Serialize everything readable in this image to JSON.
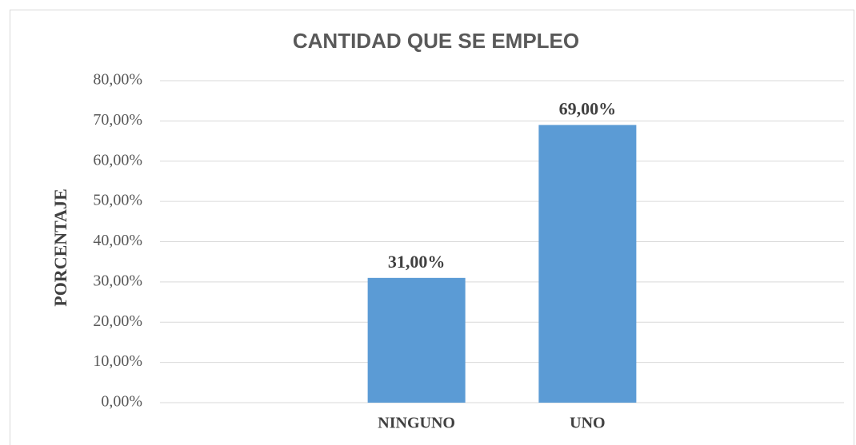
{
  "chart_data": {
    "type": "bar",
    "title": "CANTIDAD QUE SE EMPLEO",
    "y_label": "PORCENTAJE",
    "categories": [
      null,
      "NINGUNO",
      "UNO",
      null
    ],
    "values": [
      null,
      31,
      69,
      null
    ],
    "value_labels": [
      null,
      "31,00%",
      "69,00%",
      null
    ],
    "color": "#5b9bd5",
    "ylim": [
      0,
      80
    ],
    "yticks": [
      {
        "value": 0,
        "label": "0,00%"
      },
      {
        "value": 10,
        "label": "10,00%"
      },
      {
        "value": 20,
        "label": "20,00%"
      },
      {
        "value": 30,
        "label": "30,00%"
      },
      {
        "value": 40,
        "label": "40,00%"
      },
      {
        "value": 50,
        "label": "50,00%"
      },
      {
        "value": 60,
        "label": "60,00%"
      },
      {
        "value": 70,
        "label": "70,00%"
      },
      {
        "value": 80,
        "label": "80,00%"
      }
    ],
    "grid": true
  }
}
